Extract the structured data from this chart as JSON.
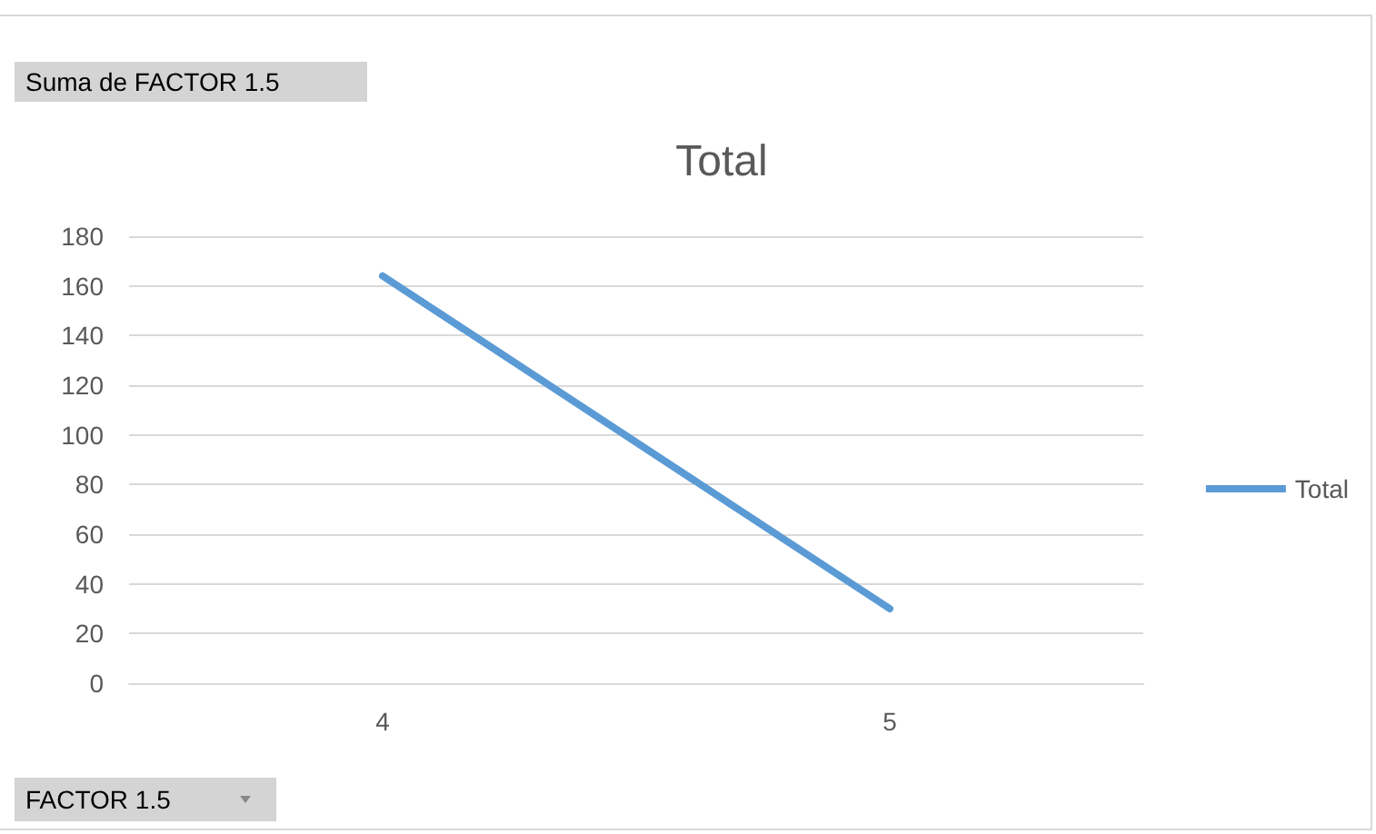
{
  "chart_data": {
    "type": "line",
    "title": "Total",
    "categories": [
      "4",
      "5"
    ],
    "series": [
      {
        "name": "Total",
        "color": "#5b9bd5",
        "values": [
          164,
          30
        ]
      }
    ],
    "ylim": [
      0,
      180
    ],
    "yticks": [
      0,
      20,
      40,
      60,
      80,
      100,
      120,
      140,
      160,
      180
    ],
    "grid": "y",
    "legend": "right",
    "marker": "none",
    "line_style": "solid",
    "annotations": [
      "Suma de FACTOR 1.5",
      "FACTOR 1.5"
    ]
  }
}
